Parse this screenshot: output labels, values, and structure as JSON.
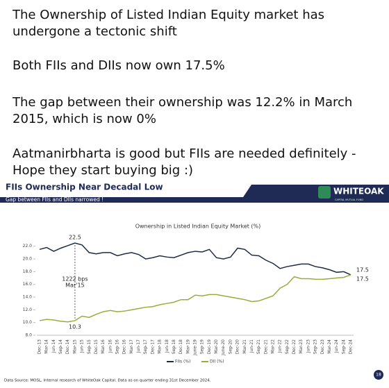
{
  "post": {
    "paragraphs": [
      [
        "The Ownership of Listed Indian Equity market has",
        "undergone a tectonic shift"
      ],
      [
        "Both FIIs and DIIs now own 17.5%"
      ],
      [
        "The gap between their ownership was 12.2% in March",
        "2015, which is now 0%"
      ],
      [
        "Aatmanirbharta is good but FIIs are needed definitely -",
        "Hope they start buying big :)"
      ]
    ]
  },
  "chart_data": {
    "type": "line",
    "title": "FIIs Ownership Near Decadal Low",
    "subtitle": "Gap between FIIs and DIIs narrowed !",
    "inner_title": "Ownership in Listed Indian Equity Market (%)",
    "logo": "WHITEOAK",
    "logo_sub": "CAPITAL MUTUAL FUND",
    "source": "Data Source: MOSL, Internal research of WhiteOak Capital. Data as on quarter ending 31st December 2024.",
    "page_number": "18",
    "annotations": [
      "22.5",
      "10.3",
      "1222 bps",
      "Mar'15",
      "17.5",
      "17.5"
    ],
    "categories": [
      "Dec-13",
      "Mar-14",
      "Jun-14",
      "Sep-14",
      "Dec-14",
      "Mar-15",
      "Jun-15",
      "Sep-15",
      "Dec-15",
      "Mar-16",
      "Jun-16",
      "Sep-16",
      "Dec-16",
      "Mar-17",
      "Jun-17",
      "Sep-17",
      "Dec-17",
      "Mar-18",
      "Jun-18",
      "Sep-18",
      "Dec-18",
      "Mar-19",
      "June-19",
      "Sep-19",
      "Dec-19",
      "Mar-20",
      "June-20",
      "Sep-20",
      "Dec-20",
      "Mar-21",
      "Jun-21",
      "Sep-21",
      "Dec-21",
      "Mar-22",
      "Jun-22",
      "Sep-22",
      "Dec-22",
      "Mar-23",
      "Jun-23",
      "Sep-23",
      "Dec-23",
      "Mar-24",
      "Jun-24",
      "Sep-24",
      "Dec-24"
    ],
    "series": [
      {
        "name": "FIIs (%)",
        "color": "#1f2a44",
        "values": [
          21.5,
          21.8,
          21.2,
          21.7,
          22.1,
          22.5,
          22.2,
          21.0,
          20.8,
          21.0,
          21.0,
          20.5,
          20.8,
          21.0,
          20.7,
          20.0,
          20.2,
          20.5,
          20.3,
          20.2,
          20.6,
          21.0,
          21.2,
          21.1,
          21.5,
          20.2,
          20.0,
          20.3,
          21.7,
          21.5,
          20.6,
          20.5,
          19.8,
          19.3,
          18.5,
          18.8,
          19.0,
          19.2,
          19.2,
          18.8,
          18.6,
          18.3,
          17.9,
          18.0,
          17.5
        ]
      },
      {
        "name": "DII (%)",
        "color": "#9aab3c",
        "values": [
          10.3,
          10.5,
          10.4,
          10.2,
          10.1,
          10.3,
          11.0,
          10.8,
          11.3,
          11.7,
          11.9,
          11.7,
          11.8,
          12.0,
          12.2,
          12.4,
          12.5,
          12.8,
          13.0,
          13.2,
          13.6,
          13.6,
          14.3,
          14.2,
          14.4,
          14.4,
          14.2,
          14.0,
          13.8,
          13.6,
          13.3,
          13.4,
          13.8,
          14.2,
          15.4,
          16.0,
          17.2,
          16.9,
          16.9,
          16.8,
          16.8,
          16.9,
          17.0,
          17.1,
          17.5
        ]
      }
    ],
    "ylim": [
      8,
      23.5
    ],
    "yticks": [
      {
        "value": 8,
        "label": "8.0"
      },
      {
        "value": 10,
        "label": "10.0"
      },
      {
        "value": 12,
        "label": "12.0"
      },
      {
        "value": 14,
        "label": "14.0"
      },
      {
        "value": 16,
        "label": "16.0"
      },
      {
        "value": 18,
        "label": "18.0"
      },
      {
        "value": 20,
        "label": "20.0"
      },
      {
        "value": 22,
        "label": "22.0"
      }
    ],
    "grid": false
  }
}
